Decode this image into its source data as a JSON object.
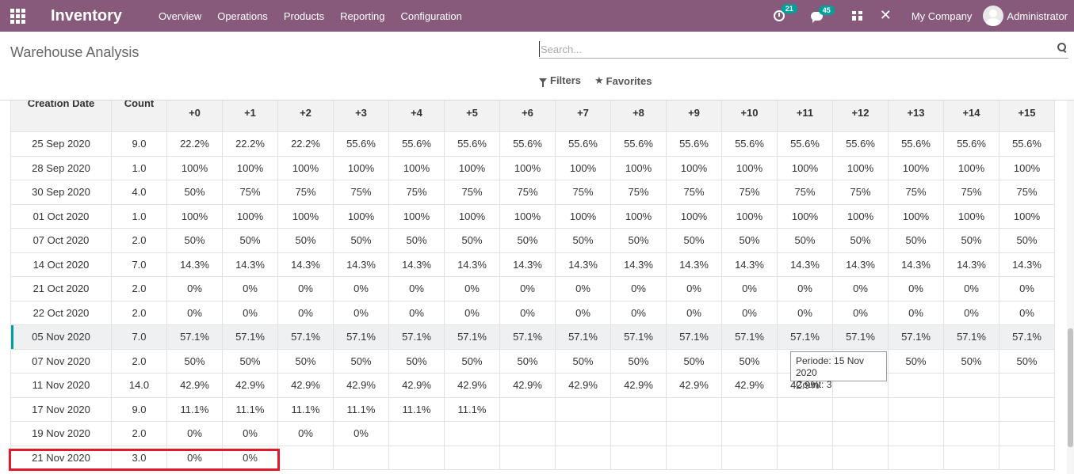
{
  "navbar": {
    "app_title": "Inventory",
    "menu": [
      "Overview",
      "Operations",
      "Products",
      "Reporting",
      "Configuration"
    ],
    "activity_count": "21",
    "messages_count": "45",
    "company": "My Company",
    "user": "Administrator",
    "colors": {
      "bar": "#875a7b",
      "badge": "#00a09d"
    }
  },
  "control": {
    "breadcrumb": "Warehouse Analysis",
    "search_placeholder": "Search...",
    "filters_label": "Filters",
    "favorites_label": "Favorites"
  },
  "cohort": {
    "headers": {
      "date": "Creation Date",
      "count": "Count",
      "periods": [
        "+0",
        "+1",
        "+2",
        "+3",
        "+4",
        "+5",
        "+6",
        "+7",
        "+8",
        "+9",
        "+10",
        "+11",
        "+12",
        "+13",
        "+14",
        "+15"
      ]
    },
    "rows": [
      {
        "date": "25 Sep 2020",
        "count": "9.0",
        "values": [
          "22.2%",
          "22.2%",
          "22.2%",
          "55.6%",
          "55.6%",
          "55.6%",
          "55.6%",
          "55.6%",
          "55.6%",
          "55.6%",
          "55.6%",
          "55.6%",
          "55.6%",
          "55.6%",
          "55.6%",
          "55.6%"
        ]
      },
      {
        "date": "28 Sep 2020",
        "count": "1.0",
        "values": [
          "100%",
          "100%",
          "100%",
          "100%",
          "100%",
          "100%",
          "100%",
          "100%",
          "100%",
          "100%",
          "100%",
          "100%",
          "100%",
          "100%",
          "100%",
          "100%"
        ]
      },
      {
        "date": "30 Sep 2020",
        "count": "4.0",
        "values": [
          "50%",
          "75%",
          "75%",
          "75%",
          "75%",
          "75%",
          "75%",
          "75%",
          "75%",
          "75%",
          "75%",
          "75%",
          "75%",
          "75%",
          "75%",
          "75%"
        ]
      },
      {
        "date": "01 Oct 2020",
        "count": "1.0",
        "values": [
          "100%",
          "100%",
          "100%",
          "100%",
          "100%",
          "100%",
          "100%",
          "100%",
          "100%",
          "100%",
          "100%",
          "100%",
          "100%",
          "100%",
          "100%",
          "100%"
        ]
      },
      {
        "date": "07 Oct 2020",
        "count": "2.0",
        "values": [
          "50%",
          "50%",
          "50%",
          "50%",
          "50%",
          "50%",
          "50%",
          "50%",
          "50%",
          "50%",
          "50%",
          "50%",
          "50%",
          "50%",
          "50%",
          "50%"
        ]
      },
      {
        "date": "14 Oct 2020",
        "count": "7.0",
        "values": [
          "14.3%",
          "14.3%",
          "14.3%",
          "14.3%",
          "14.3%",
          "14.3%",
          "14.3%",
          "14.3%",
          "14.3%",
          "14.3%",
          "14.3%",
          "14.3%",
          "14.3%",
          "14.3%",
          "14.3%",
          "14.3%"
        ]
      },
      {
        "date": "21 Oct 2020",
        "count": "2.0",
        "values": [
          "0%",
          "0%",
          "0%",
          "0%",
          "0%",
          "0%",
          "0%",
          "0%",
          "0%",
          "0%",
          "0%",
          "0%",
          "0%",
          "0%",
          "0%",
          "0%"
        ]
      },
      {
        "date": "22 Oct 2020",
        "count": "2.0",
        "values": [
          "0%",
          "0%",
          "0%",
          "0%",
          "0%",
          "0%",
          "0%",
          "0%",
          "0%",
          "0%",
          "0%",
          "0%",
          "0%",
          "0%",
          "0%",
          "0%"
        ]
      },
      {
        "date": "05 Nov 2020",
        "count": "7.0",
        "values": [
          "57.1%",
          "57.1%",
          "57.1%",
          "57.1%",
          "57.1%",
          "57.1%",
          "57.1%",
          "57.1%",
          "57.1%",
          "57.1%",
          "57.1%",
          "57.1%",
          "57.1%",
          "57.1%",
          "57.1%",
          "57.1%"
        ],
        "active": true
      },
      {
        "date": "07 Nov 2020",
        "count": "2.0",
        "values": [
          "50%",
          "50%",
          "50%",
          "50%",
          "50%",
          "50%",
          "50%",
          "50%",
          "50%",
          "50%",
          "50%",
          "",
          "50%",
          "50%",
          "50%",
          "50%"
        ]
      },
      {
        "date": "11 Nov 2020",
        "count": "14.0",
        "values": [
          "42.9%",
          "42.9%",
          "42.9%",
          "42.9%",
          "42.9%",
          "42.9%",
          "42.9%",
          "42.9%",
          "42.9%",
          "42.9%",
          "42.9%",
          "42.9%",
          "",
          "",
          "",
          ""
        ]
      },
      {
        "date": "17 Nov 2020",
        "count": "9.0",
        "values": [
          "11.1%",
          "11.1%",
          "11.1%",
          "11.1%",
          "11.1%",
          "11.1%",
          "",
          "",
          "",
          "",
          "",
          "",
          "",
          "",
          "",
          ""
        ]
      },
      {
        "date": "19 Nov 2020",
        "count": "2.0",
        "values": [
          "0%",
          "0%",
          "0%",
          "0%",
          "",
          "",
          "",
          "",
          "",
          "",
          "",
          "",
          "",
          "",
          "",
          ""
        ]
      },
      {
        "date": "21 Nov 2020",
        "count": "3.0",
        "values": [
          "0%",
          "0%",
          "",
          "",
          "",
          "",
          "",
          "",
          "",
          "",
          "",
          "",
          "",
          "",
          "",
          ""
        ]
      }
    ]
  },
  "tooltip": {
    "line1": "Periode: 15 Nov 2020",
    "line2": "Count: 3"
  }
}
